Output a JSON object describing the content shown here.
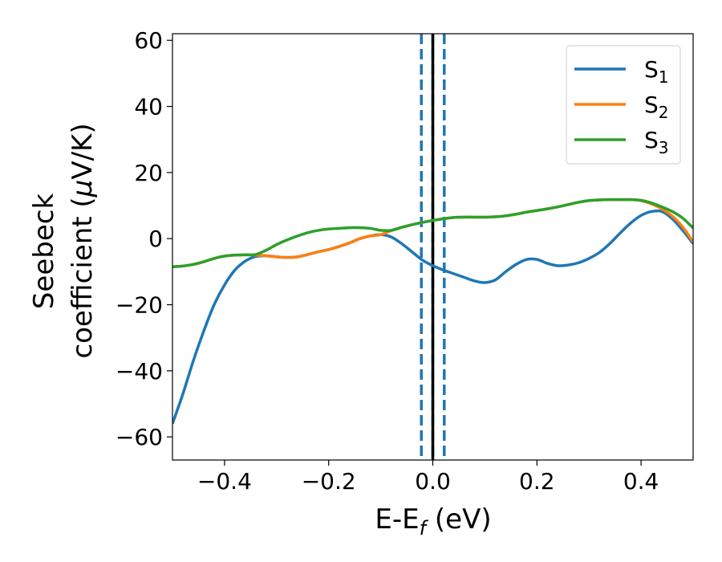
{
  "chart_data": {
    "type": "line",
    "title": "",
    "xlabel": {
      "main": "E-E",
      "sub": "f",
      "unit": " (eV)"
    },
    "ylabel": {
      "line1": "Seebeck",
      "line2": "coefficient  (",
      "mu": "μ",
      "rest": "V/K)"
    },
    "xlim": [
      -0.5,
      0.5
    ],
    "ylim": [
      -67,
      62
    ],
    "xticks": [
      -0.4,
      -0.2,
      0.0,
      0.2,
      0.4
    ],
    "xtick_labels": [
      "−0.4",
      "−0.2",
      "0.0",
      "0.2",
      "0.4"
    ],
    "yticks": [
      -60,
      -40,
      -20,
      0,
      20,
      40,
      60
    ],
    "ytick_labels": [
      "−60",
      "−40",
      "−20",
      "0",
      "20",
      "40",
      "60"
    ],
    "grid": false,
    "legend_position": "top-right",
    "vlines": [
      {
        "x": 0.0,
        "color": "#000000",
        "style": "solid"
      },
      {
        "x": -0.022,
        "color": "#1f77b4",
        "style": "dashed"
      },
      {
        "x": 0.0,
        "color": "#1f77b4",
        "style": "dashed"
      },
      {
        "x": 0.022,
        "color": "#1f77b4",
        "style": "dashed"
      }
    ],
    "series": [
      {
        "name": "S",
        "sub": "1",
        "color": "#1f77b4",
        "x": [
          -0.5,
          -0.48,
          -0.46,
          -0.44,
          -0.42,
          -0.4,
          -0.38,
          -0.36,
          -0.34,
          -0.32,
          -0.3,
          -0.28,
          -0.26,
          -0.24,
          -0.22,
          -0.2,
          -0.18,
          -0.16,
          -0.14,
          -0.12,
          -0.1,
          -0.08,
          -0.06,
          -0.04,
          -0.02,
          0.0,
          0.02,
          0.04,
          0.06,
          0.08,
          0.1,
          0.12,
          0.14,
          0.16,
          0.18,
          0.2,
          0.22,
          0.24,
          0.26,
          0.28,
          0.3,
          0.32,
          0.34,
          0.36,
          0.38,
          0.4,
          0.42,
          0.44,
          0.46,
          0.48,
          0.5
        ],
        "y": [
          -56,
          -47,
          -37,
          -28,
          -20,
          -14,
          -9.5,
          -6.8,
          -5.4,
          -5.2,
          -5.5,
          -5.7,
          -5.5,
          -4.8,
          -4.0,
          -3.3,
          -2.4,
          -1.3,
          0.0,
          0.8,
          1.2,
          0.5,
          -1.5,
          -4.0,
          -6.5,
          -8.2,
          -9.5,
          -10.6,
          -11.7,
          -12.8,
          -13.3,
          -12.5,
          -10.0,
          -7.8,
          -6.3,
          -6.3,
          -7.5,
          -8.2,
          -8.0,
          -7.3,
          -6.0,
          -4.2,
          -1.5,
          1.7,
          4.7,
          7.0,
          8.2,
          8.2,
          6.0,
          2.5,
          -1.5
        ]
      },
      {
        "name": "S",
        "sub": "2",
        "color": "#ff7f0e",
        "x": [
          -0.5,
          -0.48,
          -0.46,
          -0.44,
          -0.42,
          -0.4,
          -0.38,
          -0.36,
          -0.34,
          -0.32,
          -0.3,
          -0.28,
          -0.26,
          -0.24,
          -0.22,
          -0.2,
          -0.18,
          -0.16,
          -0.14,
          -0.12,
          -0.1,
          -0.08,
          -0.06,
          -0.04,
          -0.02,
          0.0,
          0.02,
          0.04,
          0.06,
          0.08,
          0.1,
          0.12,
          0.14,
          0.16,
          0.18,
          0.2,
          0.22,
          0.24,
          0.26,
          0.28,
          0.3,
          0.32,
          0.34,
          0.36,
          0.38,
          0.4,
          0.42,
          0.44,
          0.46,
          0.48,
          0.5
        ],
        "y": [
          -8.5,
          -8.3,
          -7.8,
          -7.0,
          -6.0,
          -5.3,
          -5.0,
          -4.9,
          -5.0,
          -5.2,
          -5.5,
          -5.7,
          -5.5,
          -4.8,
          -4.0,
          -3.3,
          -2.4,
          -1.3,
          0.0,
          0.8,
          1.2,
          2.4,
          3.4,
          4.2,
          4.9,
          5.5,
          6.0,
          6.4,
          6.5,
          6.5,
          6.5,
          6.6,
          6.9,
          7.4,
          8.0,
          8.5,
          9.0,
          9.6,
          10.3,
          11.0,
          11.5,
          11.7,
          11.8,
          11.8,
          11.8,
          11.5,
          10.5,
          9.0,
          6.8,
          3.5,
          -1.0
        ]
      },
      {
        "name": "S",
        "sub": "3",
        "color": "#2ca02c",
        "x": [
          -0.5,
          -0.48,
          -0.46,
          -0.44,
          -0.42,
          -0.4,
          -0.38,
          -0.36,
          -0.34,
          -0.32,
          -0.3,
          -0.28,
          -0.26,
          -0.24,
          -0.22,
          -0.2,
          -0.18,
          -0.16,
          -0.14,
          -0.12,
          -0.1,
          -0.08,
          -0.06,
          -0.04,
          -0.02,
          0.0,
          0.02,
          0.04,
          0.06,
          0.08,
          0.1,
          0.12,
          0.14,
          0.16,
          0.18,
          0.2,
          0.22,
          0.24,
          0.26,
          0.28,
          0.3,
          0.32,
          0.34,
          0.36,
          0.38,
          0.4,
          0.42,
          0.44,
          0.46,
          0.48,
          0.5
        ],
        "y": [
          -8.5,
          -8.3,
          -7.8,
          -7.0,
          -6.0,
          -5.3,
          -5.0,
          -4.9,
          -4.8,
          -3.5,
          -1.8,
          -0.4,
          0.8,
          1.8,
          2.5,
          2.9,
          3.1,
          3.3,
          3.3,
          3.1,
          2.5,
          2.5,
          3.4,
          4.2,
          4.9,
          5.5,
          6.0,
          6.4,
          6.5,
          6.5,
          6.5,
          6.6,
          6.9,
          7.4,
          8.0,
          8.5,
          9.0,
          9.6,
          10.3,
          11.0,
          11.5,
          11.7,
          11.8,
          11.8,
          11.8,
          11.6,
          10.8,
          9.6,
          8.2,
          6.2,
          3.2
        ]
      }
    ]
  }
}
